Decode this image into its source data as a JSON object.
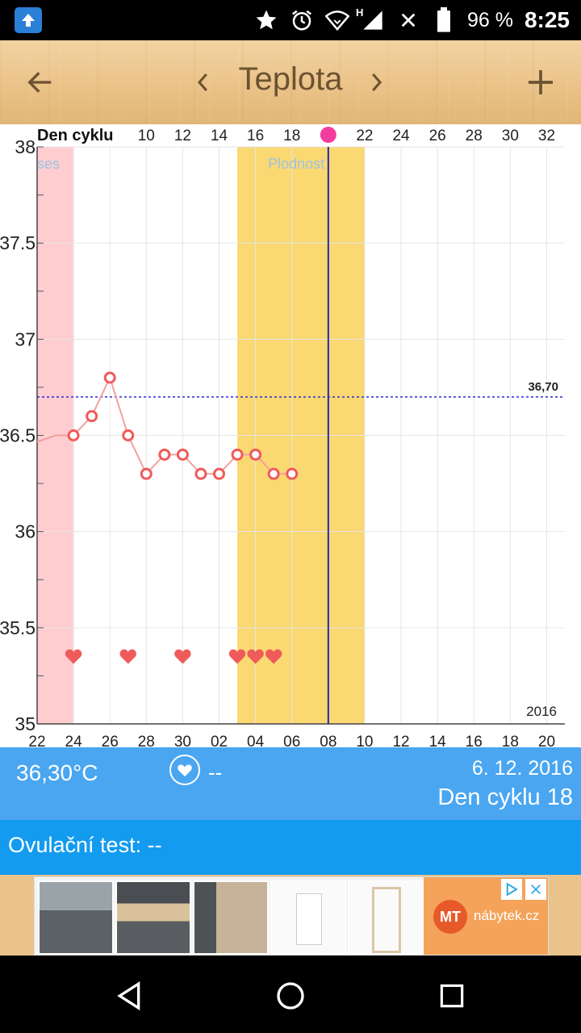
{
  "status_bar": {
    "signal_label": "H",
    "battery_text": "96 %",
    "time": "8:25"
  },
  "app_bar": {
    "title": "Teplota",
    "icons": [
      "arrow-left-icon",
      "chevron-left-icon",
      "chevron-right-icon",
      "plus-icon"
    ]
  },
  "chart_data": {
    "type": "line",
    "top_label": "Den cyklu",
    "top_ticks": [
      "10",
      "12",
      "14",
      "16",
      "18",
      "22",
      "24",
      "26",
      "28",
      "30",
      "32"
    ],
    "x_ticks": [
      "22",
      "24",
      "26",
      "28",
      "30",
      "02",
      "04",
      "06",
      "08",
      "10",
      "12",
      "14",
      "16",
      "18",
      "20"
    ],
    "y_ticks": [
      "38",
      "37.5",
      "37",
      "36.5",
      "36",
      "35.5",
      "35"
    ],
    "ylim": [
      35,
      38
    ],
    "year_label": "2016",
    "period_label": "ses",
    "fertile_label": "Plodnost",
    "threshold": {
      "value": 36.7,
      "label": "36,70"
    },
    "series": [
      {
        "values": [
          {
            "x": 23,
            "y": 36.5
          },
          {
            "x": 24,
            "y": 36.5
          },
          {
            "x": 25,
            "y": 36.6
          },
          {
            "x": 26,
            "y": 36.8
          },
          {
            "x": 27,
            "y": 36.5
          },
          {
            "x": 28,
            "y": 36.3
          },
          {
            "x": 29,
            "y": 36.4
          },
          {
            "x": 30,
            "y": 36.4
          },
          {
            "x": 31,
            "y": 36.3
          },
          {
            "x": 32,
            "y": 36.3
          },
          {
            "x": 33,
            "y": 36.4
          },
          {
            "x": 34,
            "y": 36.4
          },
          {
            "x": 35,
            "y": 36.3
          },
          {
            "x": 36,
            "y": 36.3
          }
        ]
      }
    ],
    "hearts_x": [
      24,
      27,
      30,
      33,
      34,
      35
    ],
    "period_range": [
      22,
      24
    ],
    "fertile_range": [
      33,
      40
    ],
    "today_x": 38,
    "x_start": 22,
    "x_end": 50,
    "colors": {
      "line": "#f3a0a0",
      "marker": "#ef5b5b",
      "period": "#ffcdd0",
      "fertile": "#fad872",
      "today": "#2727a8",
      "threshold": "#2a2ad9"
    }
  },
  "info": {
    "temperature": "36,30°C",
    "sex_value": "--",
    "date": "6. 12. 2016",
    "cycle_day": "Den cyklu 18"
  },
  "ovulation": {
    "label": "Ovulační test: --"
  },
  "ad": {
    "brand_short": "MT",
    "brand_name": "nábytek.cz"
  },
  "navigation": {
    "icons": [
      "back-nav-icon",
      "home-nav-icon",
      "recents-nav-icon"
    ]
  }
}
